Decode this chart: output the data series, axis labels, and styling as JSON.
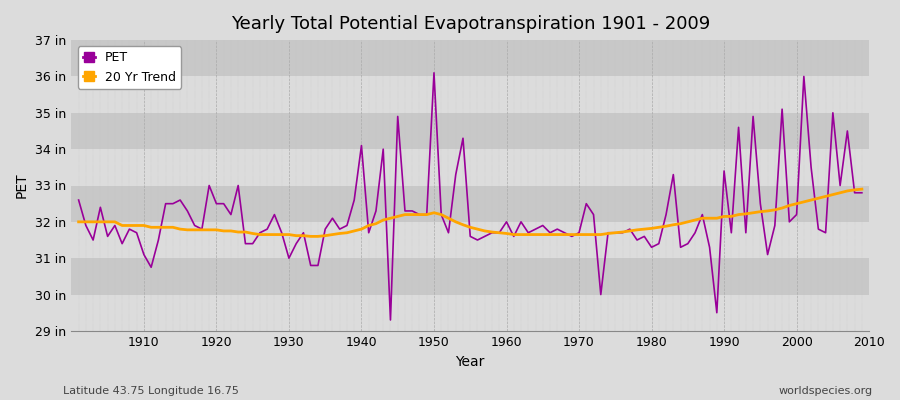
{
  "title": "Yearly Total Potential Evapotranspiration 1901 - 2009",
  "xlabel": "Year",
  "ylabel": "PET",
  "bottom_left": "Latitude 43.75 Longitude 16.75",
  "bottom_right": "worldspecies.org",
  "pet_color": "#990099",
  "trend_color": "#FFA500",
  "background_color": "#DCDCDC",
  "stripe_light": "#DCDCDC",
  "stripe_dark": "#C8C8C8",
  "grid_color": "#BBBBBB",
  "ylim": [
    29,
    37
  ],
  "ytick_labels": [
    "29 in",
    "30 in",
    "31 in",
    "32 in",
    "33 in",
    "34 in",
    "35 in",
    "36 in",
    "37 in"
  ],
  "ytick_values": [
    29,
    30,
    31,
    32,
    33,
    34,
    35,
    36,
    37
  ],
  "years": [
    1901,
    1902,
    1903,
    1904,
    1905,
    1906,
    1907,
    1908,
    1909,
    1910,
    1911,
    1912,
    1913,
    1914,
    1915,
    1916,
    1917,
    1918,
    1919,
    1920,
    1921,
    1922,
    1923,
    1924,
    1925,
    1926,
    1927,
    1928,
    1929,
    1930,
    1931,
    1932,
    1933,
    1934,
    1935,
    1936,
    1937,
    1938,
    1939,
    1940,
    1941,
    1942,
    1943,
    1944,
    1945,
    1946,
    1947,
    1948,
    1949,
    1950,
    1951,
    1952,
    1953,
    1954,
    1955,
    1956,
    1957,
    1958,
    1959,
    1960,
    1961,
    1962,
    1963,
    1964,
    1965,
    1966,
    1967,
    1968,
    1969,
    1970,
    1971,
    1972,
    1973,
    1974,
    1975,
    1976,
    1977,
    1978,
    1979,
    1980,
    1981,
    1982,
    1983,
    1984,
    1985,
    1986,
    1987,
    1988,
    1989,
    1990,
    1991,
    1992,
    1993,
    1994,
    1995,
    1996,
    1997,
    1998,
    1999,
    2000,
    2001,
    2002,
    2003,
    2004,
    2005,
    2006,
    2007,
    2008,
    2009
  ],
  "pet_values": [
    32.6,
    31.9,
    31.5,
    32.4,
    31.6,
    31.9,
    31.4,
    31.8,
    31.7,
    31.1,
    30.75,
    31.5,
    32.5,
    32.5,
    32.6,
    32.3,
    31.9,
    31.8,
    33.0,
    32.5,
    32.5,
    32.2,
    33.0,
    31.4,
    31.4,
    31.7,
    31.8,
    32.2,
    31.7,
    31.0,
    31.4,
    31.7,
    30.8,
    30.8,
    31.8,
    32.1,
    31.8,
    31.9,
    32.6,
    34.1,
    31.7,
    32.3,
    34.0,
    29.3,
    34.9,
    32.3,
    32.3,
    32.2,
    32.2,
    36.1,
    32.2,
    31.7,
    33.3,
    34.3,
    31.6,
    31.5,
    31.6,
    31.7,
    31.7,
    32.0,
    31.6,
    32.0,
    31.7,
    31.8,
    31.9,
    31.7,
    31.8,
    31.7,
    31.6,
    31.7,
    32.5,
    32.2,
    30.0,
    31.7,
    31.7,
    31.7,
    31.8,
    31.5,
    31.6,
    31.3,
    31.4,
    32.2,
    33.3,
    31.3,
    31.4,
    31.7,
    32.2,
    31.3,
    29.5,
    33.4,
    31.7,
    34.6,
    31.7,
    34.9,
    32.5,
    31.1,
    31.9,
    35.1,
    32.0,
    32.2,
    36.0,
    33.5,
    31.8,
    31.7,
    35.0,
    33.0,
    34.5,
    32.8,
    32.8
  ],
  "trend_values": [
    32.0,
    32.0,
    32.0,
    32.0,
    32.0,
    32.0,
    31.9,
    31.9,
    31.9,
    31.9,
    31.85,
    31.85,
    31.85,
    31.85,
    31.8,
    31.78,
    31.78,
    31.78,
    31.78,
    31.78,
    31.75,
    31.75,
    31.72,
    31.72,
    31.68,
    31.65,
    31.65,
    31.65,
    31.65,
    31.65,
    31.62,
    31.62,
    31.6,
    31.6,
    31.62,
    31.65,
    31.68,
    31.7,
    31.75,
    31.8,
    31.9,
    31.95,
    32.05,
    32.1,
    32.15,
    32.2,
    32.2,
    32.2,
    32.2,
    32.25,
    32.2,
    32.1,
    32.0,
    31.92,
    31.85,
    31.8,
    31.75,
    31.72,
    31.7,
    31.68,
    31.65,
    31.65,
    31.65,
    31.65,
    31.65,
    31.65,
    31.65,
    31.65,
    31.65,
    31.65,
    31.65,
    31.65,
    31.65,
    31.68,
    31.7,
    31.72,
    31.75,
    31.78,
    31.8,
    31.82,
    31.85,
    31.88,
    31.92,
    31.95,
    32.0,
    32.05,
    32.1,
    32.1,
    32.1,
    32.15,
    32.15,
    32.2,
    32.22,
    32.25,
    32.28,
    32.3,
    32.33,
    32.38,
    32.45,
    32.5,
    32.55,
    32.6,
    32.65,
    32.7,
    32.75,
    32.8,
    32.85,
    32.88,
    32.9
  ]
}
